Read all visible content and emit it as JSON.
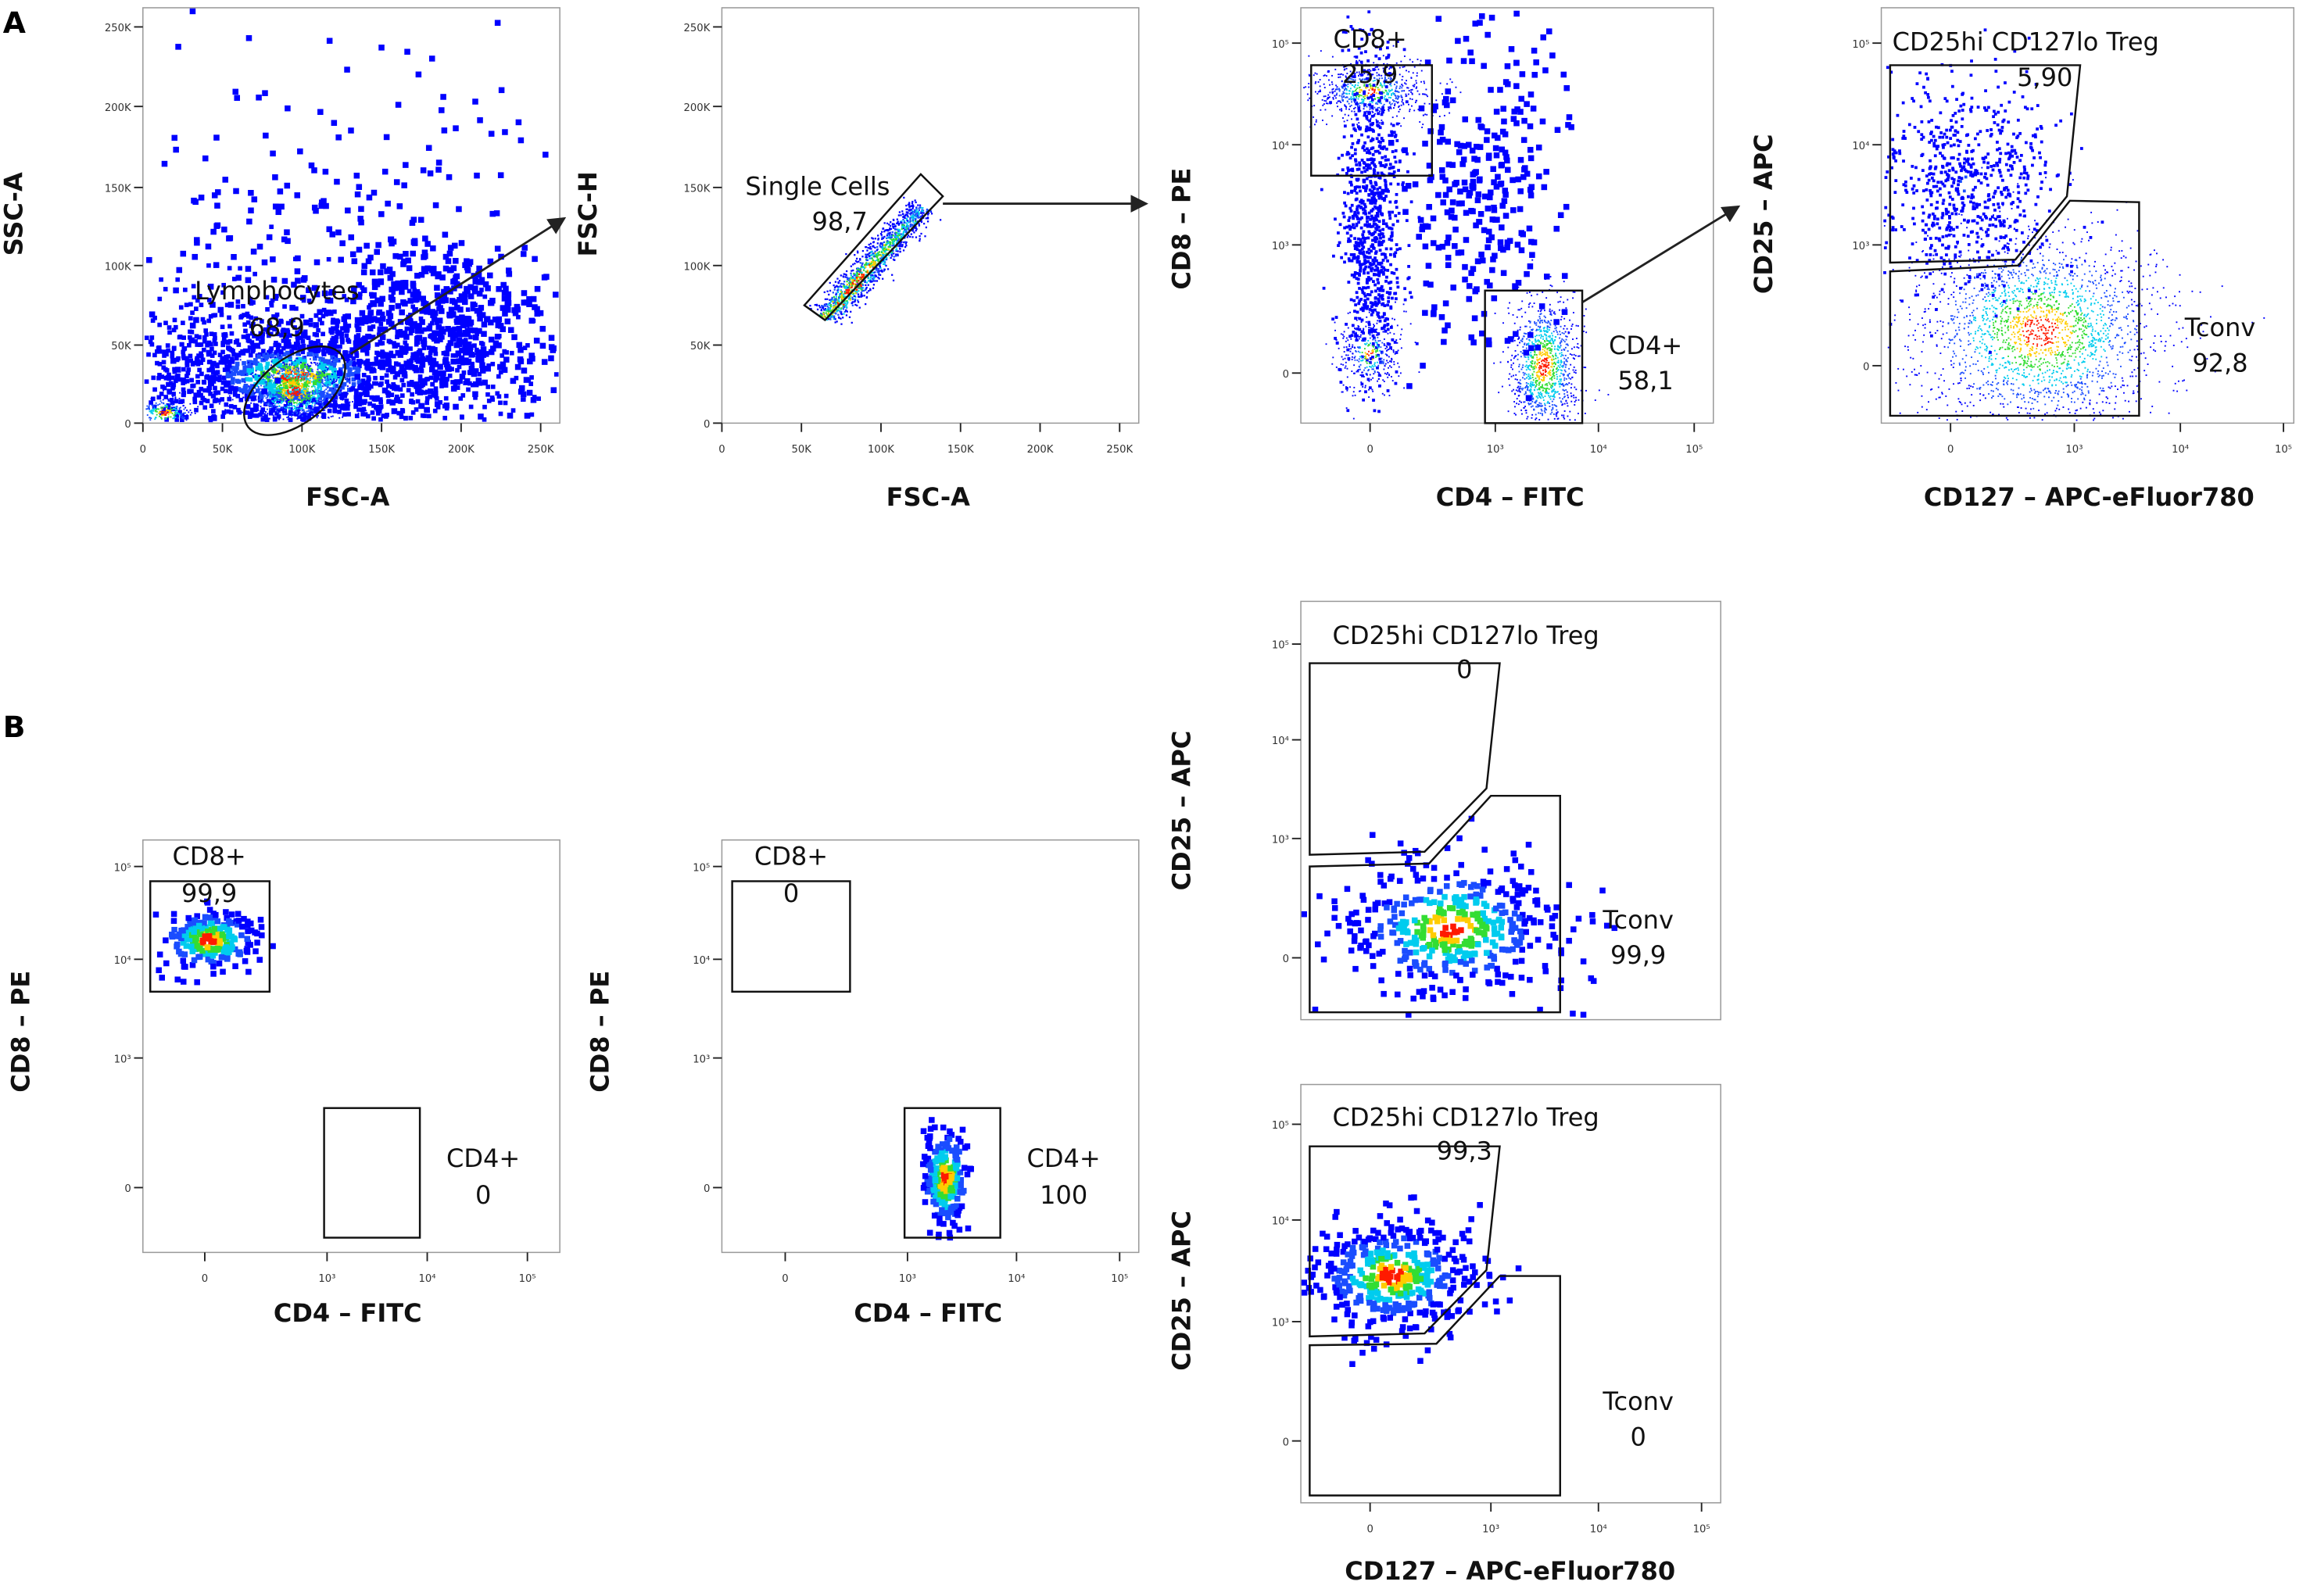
{
  "panel_labels": [
    "A",
    "B"
  ],
  "chart_data": [
    {
      "type": "scatter",
      "panel": "A",
      "xlabel": "FSC-A",
      "ylabel": "SSC-A",
      "x_ticks": [
        "0",
        "50K",
        "100K",
        "150K",
        "200K",
        "250K"
      ],
      "y_ticks": [
        "0",
        "50K",
        "100K",
        "150K",
        "200K",
        "250K"
      ],
      "xlim": [
        0,
        262144
      ],
      "ylim": [
        0,
        262144
      ],
      "scale": "linear",
      "gates": [
        {
          "name": "Lymphocytes",
          "percent": "68,9"
        }
      ]
    },
    {
      "type": "scatter",
      "panel": "A",
      "xlabel": "FSC-A",
      "ylabel": "FSC-H",
      "x_ticks": [
        "0",
        "50K",
        "100K",
        "150K",
        "200K",
        "250K"
      ],
      "y_ticks": [
        "0",
        "50K",
        "100K",
        "150K",
        "200K",
        "250K"
      ],
      "xlim": [
        0,
        262144
      ],
      "ylim": [
        0,
        262144
      ],
      "scale": "linear",
      "gates": [
        {
          "name": "Single Cells",
          "percent": "98,7"
        }
      ]
    },
    {
      "type": "scatter",
      "panel": "A",
      "xlabel": "CD4 – FITC",
      "ylabel": "CD8 – PE",
      "x_ticks": [
        "0",
        "10³",
        "10⁴",
        "10⁵"
      ],
      "y_ticks": [
        "0",
        "10³",
        "10⁴",
        "10⁵"
      ],
      "scale": "biexponential",
      "gates": [
        {
          "name": "CD8+",
          "percent": "25,9"
        },
        {
          "name": "CD4+",
          "percent": "58,1"
        }
      ]
    },
    {
      "type": "scatter",
      "panel": "A",
      "xlabel": "CD127 – APC-eFluor780",
      "ylabel": "CD25 – APC",
      "x_ticks": [
        "0",
        "10³",
        "10⁴",
        "10⁵"
      ],
      "y_ticks": [
        "0",
        "10³",
        "10⁴",
        "10⁵"
      ],
      "scale": "biexponential",
      "gates": [
        {
          "name": "CD25hi CD127lo Treg",
          "percent": "5,90"
        },
        {
          "name": "Tconv",
          "percent": "92,8"
        }
      ]
    },
    {
      "type": "scatter",
      "panel": "B",
      "xlabel": "CD4 – FITC",
      "ylabel": "CD8 – PE",
      "x_ticks": [
        "0",
        "10³",
        "10⁴",
        "10⁵"
      ],
      "y_ticks": [
        "0",
        "10³",
        "10⁴",
        "10⁵"
      ],
      "scale": "biexponential",
      "gates": [
        {
          "name": "CD8+",
          "percent": "99,9"
        },
        {
          "name": "CD4+",
          "percent": "0"
        }
      ]
    },
    {
      "type": "scatter",
      "panel": "B",
      "xlabel": "CD4 – FITC",
      "ylabel": "CD8 – PE",
      "x_ticks": [
        "0",
        "10³",
        "10⁴",
        "10⁵"
      ],
      "y_ticks": [
        "0",
        "10³",
        "10⁴",
        "10⁵"
      ],
      "scale": "biexponential",
      "gates": [
        {
          "name": "CD8+",
          "percent": "0"
        },
        {
          "name": "CD4+",
          "percent": "100"
        }
      ]
    },
    {
      "type": "scatter",
      "panel": "B",
      "xlabel": "",
      "ylabel": "CD25 – APC",
      "x_ticks": [],
      "y_ticks": [
        "0",
        "10³",
        "10⁴",
        "10⁵"
      ],
      "scale": "biexponential",
      "gates": [
        {
          "name": "CD25hi CD127lo Treg",
          "percent": "0"
        },
        {
          "name": "Tconv",
          "percent": "99,9"
        }
      ]
    },
    {
      "type": "scatter",
      "panel": "B",
      "xlabel": "CD127 – APC-eFluor780",
      "ylabel": "CD25 – APC",
      "x_ticks": [
        "0",
        "10³",
        "10⁴",
        "10⁵"
      ],
      "y_ticks": [
        "0",
        "10³",
        "10⁴",
        "10⁵"
      ],
      "scale": "biexponential",
      "gates": [
        {
          "name": "CD25hi CD127lo Treg",
          "percent": "99,3"
        },
        {
          "name": "Tconv",
          "percent": "0"
        }
      ]
    }
  ]
}
